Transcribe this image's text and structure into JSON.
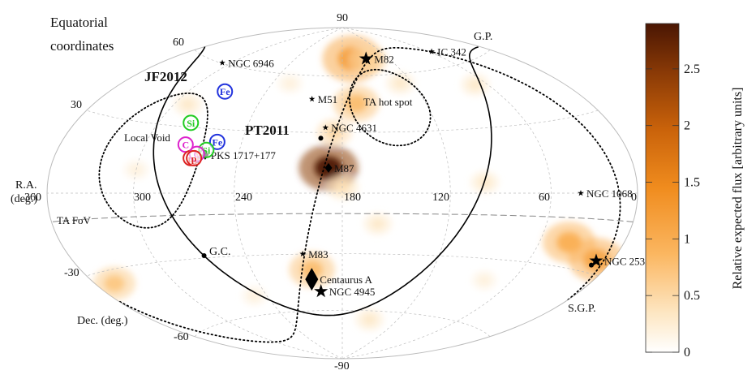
{
  "chart_data": {
    "type": "heatmap",
    "projection": "hammer-aitoff",
    "title": "Equatorial coordinates",
    "title_lines": [
      "Equatorial",
      "coordinates"
    ],
    "ra_axis": {
      "label_lines": [
        "R.A.",
        "(deg.)"
      ],
      "ticks": [
        360,
        300,
        240,
        180,
        120,
        60,
        0
      ],
      "direction": "decreasing-right"
    },
    "dec_axis": {
      "label": "Dec. (deg.)",
      "ticks": [
        90,
        60,
        30,
        -30,
        -60,
        -90
      ]
    },
    "grid": true,
    "colorbar": {
      "label": "Relative expected flux [arbitrary units]",
      "range": [
        0,
        2.9
      ],
      "ticks": [
        0,
        0.5,
        1,
        1.5,
        2,
        2.5
      ],
      "tick_labels": [
        "0",
        "0.5",
        "1",
        "1.5",
        "2",
        "2.5"
      ],
      "colors": [
        "#ffffff",
        "#fde6c2",
        "#fbb660",
        "#f08c1e",
        "#c9620a",
        "#8a3a06",
        "#4a1603"
      ]
    },
    "flux_blobs": [
      {
        "ra": 187.7,
        "dec": 12.4,
        "value": 2.9
      },
      {
        "ra": 170,
        "dec": 45,
        "value": 0.8
      },
      {
        "ra": 167,
        "dec": 70,
        "value": 1.2
      },
      {
        "ra": 148,
        "dec": 69,
        "value": 0.6
      },
      {
        "ra": 185,
        "dec": 30,
        "value": 0.5
      },
      {
        "ra": 180,
        "dec": 3,
        "value": 0.4
      },
      {
        "ra": 200,
        "dec": -38,
        "value": 0.8
      },
      {
        "ra": 160,
        "dec": -15,
        "value": 0.3
      },
      {
        "ra": 100,
        "dec": 5,
        "value": 0.3
      },
      {
        "ra": 40,
        "dec": -20,
        "value": 1.0
      },
      {
        "ra": 12,
        "dec": -25,
        "value": 1.1
      },
      {
        "ra": 345,
        "dec": -35,
        "value": 0.7
      },
      {
        "ra": 130,
        "dec": 55,
        "value": 0.3
      },
      {
        "ra": 290,
        "dec": 40,
        "value": 0.3
      },
      {
        "ra": 70,
        "dec": 50,
        "value": 0.3
      },
      {
        "ra": 225,
        "dec": 55,
        "value": 0.2
      },
      {
        "ra": 150,
        "dec": -65,
        "value": 0.3
      },
      {
        "ra": 300,
        "dec": 10,
        "value": 0.2
      },
      {
        "ra": 250,
        "dec": -50,
        "value": 0.2
      },
      {
        "ra": 80,
        "dec": -40,
        "value": 0.2
      }
    ],
    "sources": [
      {
        "name": "NGC 6946",
        "ra": 308.7,
        "dec": 60.2,
        "marker": "star-small"
      },
      {
        "name": "M82",
        "ra": 149.0,
        "dec": 69.7,
        "marker": "star-large"
      },
      {
        "name": "IC 342",
        "ra": 56.7,
        "dec": 68.1,
        "marker": "star-small"
      },
      {
        "name": "M51",
        "ra": 202.5,
        "dec": 47.2,
        "marker": "star-small"
      },
      {
        "name": "NGC 4631",
        "ra": 190.5,
        "dec": 32.5,
        "marker": "star-small"
      },
      {
        "name": "M87",
        "ra": 187.7,
        "dec": 12.4,
        "marker": "diamond-small"
      },
      {
        "name": "NGC 1068",
        "ra": 40.7,
        "dec": -0.0,
        "marker": "star-small"
      },
      {
        "name": "NGC 253",
        "ra": 11.9,
        "dec": -25.3,
        "marker": "star-large"
      },
      {
        "name": "M83",
        "ra": 204.3,
        "dec": -29.9,
        "marker": "star-small"
      },
      {
        "name": "Centaurus A",
        "ra": 201.4,
        "dec": -43.0,
        "marker": "diamond-large"
      },
      {
        "name": "NGC 4945",
        "ra": 196.4,
        "dec": -49.5,
        "marker": "star-large"
      },
      {
        "name": "PKS 1717+177",
        "ra": 259.8,
        "dec": 17.7,
        "marker": "diamond-small"
      }
    ],
    "regions": [
      {
        "name": "TA hot spot",
        "center_ra": 146.7,
        "center_dec": 43.2,
        "radius_deg": 20,
        "style": "dotted"
      },
      {
        "name": "Local Void",
        "center_ra": 294,
        "center_dec": 15,
        "radius_deg": 30,
        "style": "dotted"
      }
    ],
    "lines": [
      {
        "name": "TA FoV",
        "dec": -10,
        "style": "dashed"
      },
      {
        "name": "Galactic plane",
        "style": "solid"
      },
      {
        "name": "Supergalactic plane",
        "style": "dotted"
      }
    ],
    "reference_points": [
      {
        "name": "G.C.",
        "ra": 266.4,
        "dec": -28.9
      },
      {
        "name": "G.P.",
        "ra": 192.9,
        "dec": 27.1
      },
      {
        "name": "S.G.P.",
        "ra": 12.9,
        "dec": -27.1
      }
    ],
    "composition_markers": [
      {
        "group": "JF2012",
        "element": "Fe",
        "color": "#2233dd",
        "ra": 272,
        "dec": 48
      },
      {
        "group": "JF2012",
        "element": "Si",
        "color": "#22cc22",
        "ra": 278,
        "dec": 32
      },
      {
        "group": "JF2012",
        "element": "C",
        "color": "#dd22cc",
        "ra": 274,
        "dec": 22
      },
      {
        "group": "JF2012",
        "element": "p",
        "color": "#dd2222",
        "ra": 268,
        "dec": 16
      },
      {
        "group": "PT2011",
        "element": "Fe",
        "color": "#2233dd",
        "ra": 255,
        "dec": 24
      },
      {
        "group": "PT2011",
        "element": "Si",
        "color": "#22cc22",
        "ra": 260,
        "dec": 20
      },
      {
        "group": "PT2011",
        "element": "C",
        "color": "#dd22cc",
        "ra": 265,
        "dec": 18
      },
      {
        "group": "PT2011",
        "element": "p",
        "color": "#dd2222",
        "ra": 266,
        "dec": 16
      }
    ],
    "model_labels": [
      "JF2012",
      "PT2011"
    ]
  }
}
